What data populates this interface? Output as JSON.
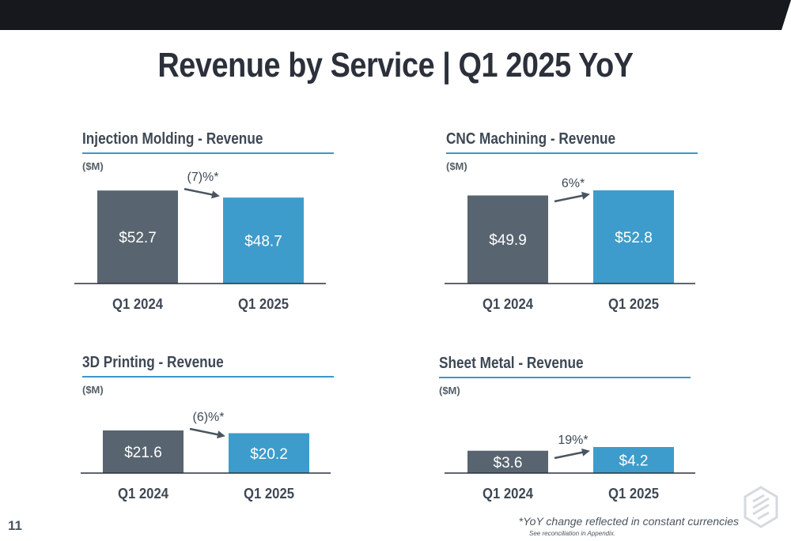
{
  "page": {
    "title": "Revenue by Service | Q1 2025 YoY",
    "page_number": "11",
    "footnote": "*YoY change reflected in constant currencies",
    "footnote_sub": "See reconciliation in Appendix.",
    "colors": {
      "topbar": "#16181d",
      "prior_bar": "#586570",
      "current_bar": "#3d9ccb",
      "accent_line": "#3d96c9",
      "text": "#3e4854"
    },
    "logo_icon": "company-logo-icon"
  },
  "chart_data": [
    {
      "type": "bar",
      "title": "Injection Molding - Revenue",
      "unit": "($M)",
      "categories": [
        "Q1 2024",
        "Q1 2025"
      ],
      "values": [
        52.7,
        48.7
      ],
      "value_labels": [
        "$52.7",
        "$48.7"
      ],
      "change_label": "(7)%*"
    },
    {
      "type": "bar",
      "title": "CNC Machining - Revenue",
      "unit": "($M)",
      "categories": [
        "Q1 2024",
        "Q1 2025"
      ],
      "values": [
        49.9,
        52.8
      ],
      "value_labels": [
        "$49.9",
        "$52.8"
      ],
      "change_label": "6%*"
    },
    {
      "type": "bar",
      "title": "3D Printing - Revenue",
      "unit": "($M)",
      "categories": [
        "Q1 2024",
        "Q1 2025"
      ],
      "values": [
        21.6,
        20.2
      ],
      "value_labels": [
        "$21.6",
        "$20.2"
      ],
      "change_label": "(6)%*"
    },
    {
      "type": "bar",
      "title": "Sheet Metal - Revenue",
      "unit": "($M)",
      "categories": [
        "Q1 2024",
        "Q1 2025"
      ],
      "values": [
        3.6,
        4.2
      ],
      "value_labels": [
        "$3.6",
        "$4.2"
      ],
      "change_label": "19%*"
    }
  ]
}
